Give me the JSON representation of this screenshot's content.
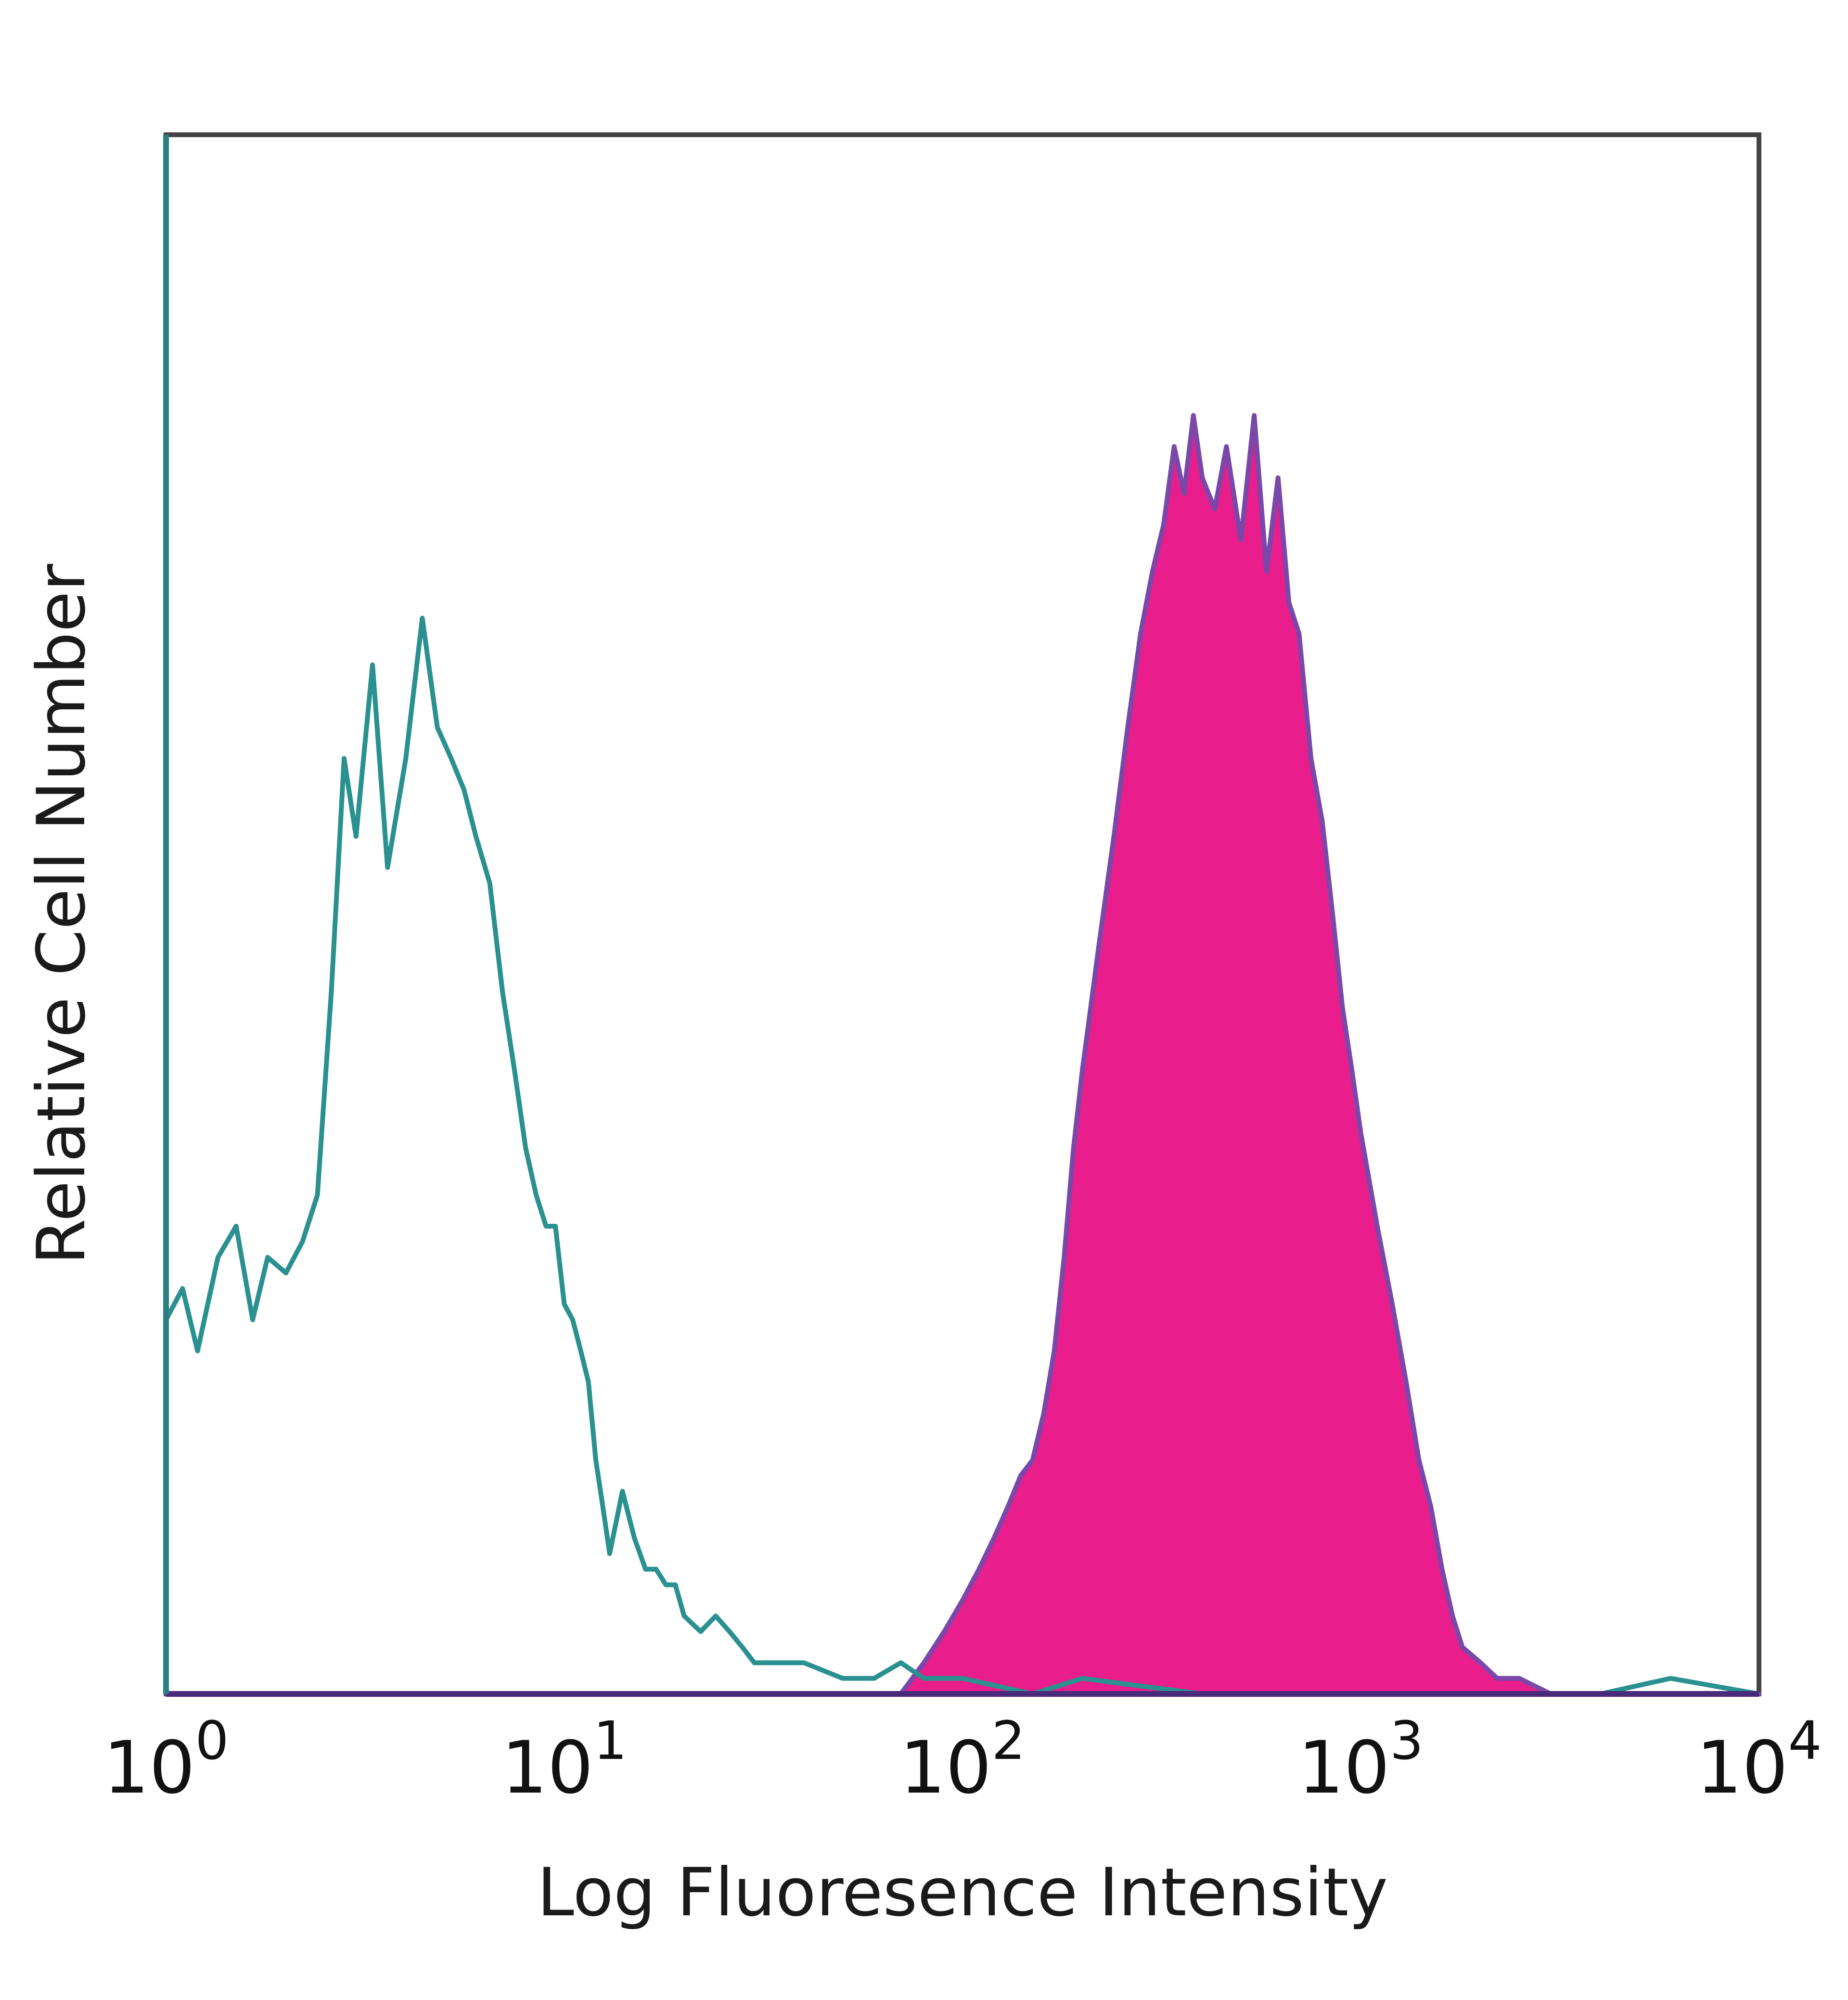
{
  "chart_data": {
    "type": "area",
    "xlabel": "Log Fluoresence Intensity",
    "ylabel": "Relative Cell Number",
    "x_scale": "log",
    "xlim": [
      1,
      10000
    ],
    "ylim": [
      0,
      100
    ],
    "grid": false,
    "x_ticks": [
      {
        "value": 1,
        "base": "10",
        "exp": "0"
      },
      {
        "value": 10,
        "base": "10",
        "exp": "1"
      },
      {
        "value": 100,
        "base": "10",
        "exp": "2"
      },
      {
        "value": 1000,
        "base": "10",
        "exp": "3"
      },
      {
        "value": 10000,
        "base": "10",
        "exp": "4"
      }
    ],
    "series": [
      {
        "style": "outline",
        "color": "#2a9090",
        "x": [
          1.0,
          1.1,
          1.2,
          1.35,
          1.5,
          1.65,
          1.8,
          2.0,
          2.2,
          2.4,
          2.6,
          2.8,
          3.0,
          3.3,
          3.6,
          4.0,
          4.4,
          4.8,
          5.2,
          5.6,
          6.0,
          6.5,
          7.0,
          7.5,
          8.0,
          8.5,
          9.0,
          9.5,
          10.0,
          10.5,
          11.0,
          11.5,
          12.0,
          12.5,
          13.0,
          14.0,
          15.0,
          16.0,
          17.0,
          18.0,
          19.0,
          20.0,
          22.0,
          24.0,
          26.0,
          28.0,
          30.0,
          35.0,
          40.0,
          50.0,
          60.0,
          70.0,
          80.0,
          100.0,
          150.0,
          200.0,
          400.0,
          1000.0,
          2000.0,
          4000.0,
          6000.0,
          10000.0
        ],
        "y": [
          24,
          26,
          22,
          28,
          30,
          24,
          28,
          27,
          29,
          32,
          45,
          60,
          55,
          66,
          53,
          60,
          69,
          62,
          60,
          58,
          55,
          52,
          45,
          40,
          35,
          32,
          30,
          30,
          25,
          24,
          22,
          20,
          15,
          12,
          9,
          13,
          10,
          8,
          8,
          7,
          7,
          5,
          4,
          5,
          4,
          3,
          2,
          2,
          2,
          1,
          1,
          2,
          1,
          1,
          0,
          1,
          0,
          0,
          0,
          0,
          1,
          0
        ]
      },
      {
        "style": "filled",
        "color": "#e91e8c",
        "edge_color": "#7a48a8",
        "x": [
          1.0,
          10.0,
          30.0,
          50.0,
          70.0,
          80.0,
          90.0,
          100.0,
          110.0,
          120.0,
          130.0,
          140.0,
          150.0,
          160.0,
          170.0,
          180.0,
          190.0,
          200.0,
          220.0,
          240.0,
          260.0,
          280.0,
          300.0,
          320.0,
          340.0,
          360.0,
          380.0,
          400.0,
          430.0,
          460.0,
          500.0,
          540.0,
          580.0,
          620.0,
          660.0,
          700.0,
          750.0,
          800.0,
          850.0,
          900.0,
          950.0,
          1000.0,
          1100.0,
          1200.0,
          1300.0,
          1400.0,
          1500.0,
          1600.0,
          1700.0,
          1800.0,
          2000.0,
          2200.0,
          2500.0,
          3000.0,
          4000.0,
          10000.0
        ],
        "y": [
          0,
          0,
          0,
          0,
          0,
          2,
          4,
          6,
          8,
          10,
          12,
          14,
          15,
          18,
          22,
          28,
          35,
          40,
          48,
          55,
          62,
          68,
          72,
          75,
          80,
          77,
          82,
          78,
          76,
          80,
          74,
          82,
          72,
          78,
          70,
          68,
          60,
          56,
          50,
          44,
          40,
          36,
          30,
          25,
          20,
          15,
          12,
          8,
          5,
          3,
          2,
          1,
          1,
          0,
          0,
          0
        ]
      }
    ]
  }
}
